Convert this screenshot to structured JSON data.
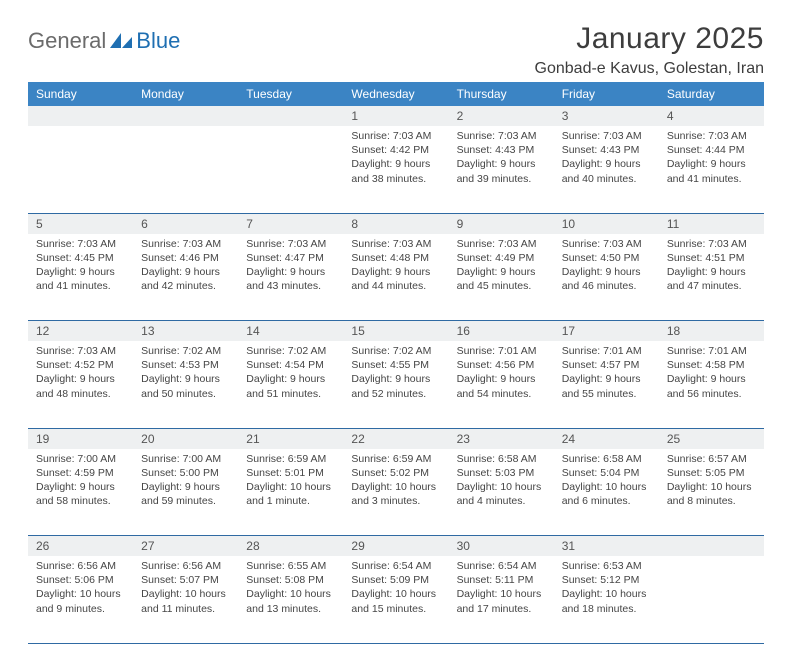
{
  "logo": {
    "word1": "General",
    "word2": "Blue"
  },
  "title": "January 2025",
  "subtitle": "Gonbad-e Kavus, Golestan, Iran",
  "header_bg": "#3b84c4",
  "header_fg": "#ffffff",
  "daynum_bg": "#eef0f1",
  "rule_color": "#2f6aa3",
  "weekdays": [
    "Sunday",
    "Monday",
    "Tuesday",
    "Wednesday",
    "Thursday",
    "Friday",
    "Saturday"
  ],
  "weeks": [
    [
      null,
      null,
      null,
      {
        "n": "1",
        "sr": "7:03 AM",
        "ss": "4:42 PM",
        "dl": "9 hours and 38 minutes."
      },
      {
        "n": "2",
        "sr": "7:03 AM",
        "ss": "4:43 PM",
        "dl": "9 hours and 39 minutes."
      },
      {
        "n": "3",
        "sr": "7:03 AM",
        "ss": "4:43 PM",
        "dl": "9 hours and 40 minutes."
      },
      {
        "n": "4",
        "sr": "7:03 AM",
        "ss": "4:44 PM",
        "dl": "9 hours and 41 minutes."
      }
    ],
    [
      {
        "n": "5",
        "sr": "7:03 AM",
        "ss": "4:45 PM",
        "dl": "9 hours and 41 minutes."
      },
      {
        "n": "6",
        "sr": "7:03 AM",
        "ss": "4:46 PM",
        "dl": "9 hours and 42 minutes."
      },
      {
        "n": "7",
        "sr": "7:03 AM",
        "ss": "4:47 PM",
        "dl": "9 hours and 43 minutes."
      },
      {
        "n": "8",
        "sr": "7:03 AM",
        "ss": "4:48 PM",
        "dl": "9 hours and 44 minutes."
      },
      {
        "n": "9",
        "sr": "7:03 AM",
        "ss": "4:49 PM",
        "dl": "9 hours and 45 minutes."
      },
      {
        "n": "10",
        "sr": "7:03 AM",
        "ss": "4:50 PM",
        "dl": "9 hours and 46 minutes."
      },
      {
        "n": "11",
        "sr": "7:03 AM",
        "ss": "4:51 PM",
        "dl": "9 hours and 47 minutes."
      }
    ],
    [
      {
        "n": "12",
        "sr": "7:03 AM",
        "ss": "4:52 PM",
        "dl": "9 hours and 48 minutes."
      },
      {
        "n": "13",
        "sr": "7:02 AM",
        "ss": "4:53 PM",
        "dl": "9 hours and 50 minutes."
      },
      {
        "n": "14",
        "sr": "7:02 AM",
        "ss": "4:54 PM",
        "dl": "9 hours and 51 minutes."
      },
      {
        "n": "15",
        "sr": "7:02 AM",
        "ss": "4:55 PM",
        "dl": "9 hours and 52 minutes."
      },
      {
        "n": "16",
        "sr": "7:01 AM",
        "ss": "4:56 PM",
        "dl": "9 hours and 54 minutes."
      },
      {
        "n": "17",
        "sr": "7:01 AM",
        "ss": "4:57 PM",
        "dl": "9 hours and 55 minutes."
      },
      {
        "n": "18",
        "sr": "7:01 AM",
        "ss": "4:58 PM",
        "dl": "9 hours and 56 minutes."
      }
    ],
    [
      {
        "n": "19",
        "sr": "7:00 AM",
        "ss": "4:59 PM",
        "dl": "9 hours and 58 minutes."
      },
      {
        "n": "20",
        "sr": "7:00 AM",
        "ss": "5:00 PM",
        "dl": "9 hours and 59 minutes."
      },
      {
        "n": "21",
        "sr": "6:59 AM",
        "ss": "5:01 PM",
        "dl": "10 hours and 1 minute."
      },
      {
        "n": "22",
        "sr": "6:59 AM",
        "ss": "5:02 PM",
        "dl": "10 hours and 3 minutes."
      },
      {
        "n": "23",
        "sr": "6:58 AM",
        "ss": "5:03 PM",
        "dl": "10 hours and 4 minutes."
      },
      {
        "n": "24",
        "sr": "6:58 AM",
        "ss": "5:04 PM",
        "dl": "10 hours and 6 minutes."
      },
      {
        "n": "25",
        "sr": "6:57 AM",
        "ss": "5:05 PM",
        "dl": "10 hours and 8 minutes."
      }
    ],
    [
      {
        "n": "26",
        "sr": "6:56 AM",
        "ss": "5:06 PM",
        "dl": "10 hours and 9 minutes."
      },
      {
        "n": "27",
        "sr": "6:56 AM",
        "ss": "5:07 PM",
        "dl": "10 hours and 11 minutes."
      },
      {
        "n": "28",
        "sr": "6:55 AM",
        "ss": "5:08 PM",
        "dl": "10 hours and 13 minutes."
      },
      {
        "n": "29",
        "sr": "6:54 AM",
        "ss": "5:09 PM",
        "dl": "10 hours and 15 minutes."
      },
      {
        "n": "30",
        "sr": "6:54 AM",
        "ss": "5:11 PM",
        "dl": "10 hours and 17 minutes."
      },
      {
        "n": "31",
        "sr": "6:53 AM",
        "ss": "5:12 PM",
        "dl": "10 hours and 18 minutes."
      },
      null
    ]
  ],
  "labels": {
    "sunrise": "Sunrise: ",
    "sunset": "Sunset: ",
    "daylight": "Daylight: "
  }
}
